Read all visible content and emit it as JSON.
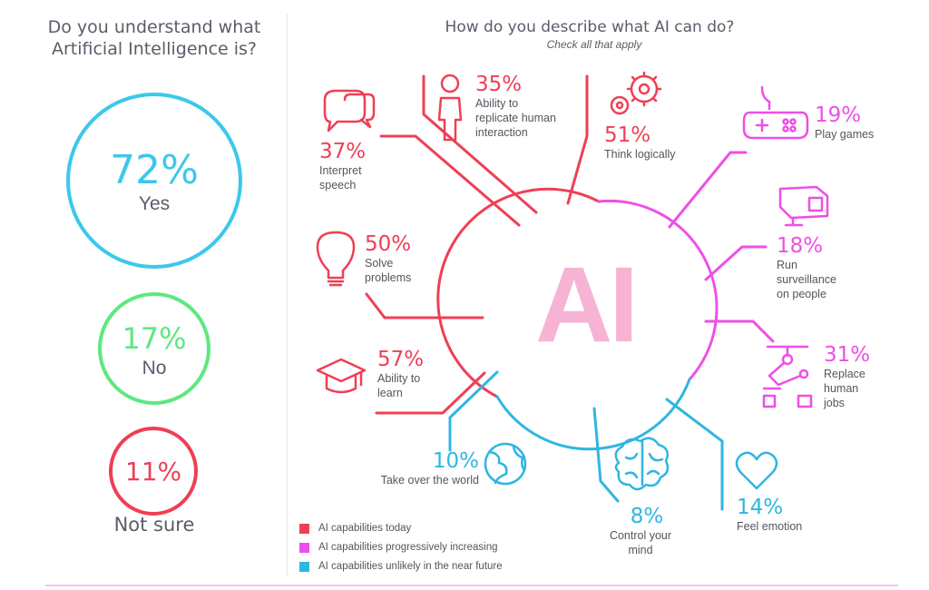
{
  "left_panel": {
    "question": [
      "Do you understand what",
      "Artificial Intelligence is?"
    ],
    "answers": [
      {
        "pct": "72%",
        "label": "Yes"
      },
      {
        "pct": "17%",
        "label": "No"
      },
      {
        "pct": "11%",
        "label": "Not sure"
      }
    ]
  },
  "right_panel": {
    "question": "How do you describe what AI can do?",
    "subtitle": "Check all that apply",
    "center": "AI",
    "items": {
      "interpret_speech": {
        "pct": "37%",
        "desc": [
          "Interpret",
          "speech"
        ]
      },
      "replicate": {
        "pct": "35%",
        "desc": [
          "Ability to",
          "replicate human",
          "interaction"
        ]
      },
      "think": {
        "pct": "51%",
        "desc": [
          "Think logically"
        ]
      },
      "games": {
        "pct": "19%",
        "desc": [
          "Play games"
        ]
      },
      "solve": {
        "pct": "50%",
        "desc": [
          "Solve",
          "problems"
        ]
      },
      "surveillance": {
        "pct": "18%",
        "desc": [
          "Run",
          "surveillance",
          "on people"
        ]
      },
      "learn": {
        "pct": "57%",
        "desc": [
          "Ability to",
          "learn"
        ]
      },
      "jobs": {
        "pct": "31%",
        "desc": [
          "Replace",
          "human",
          "jobs"
        ]
      },
      "world": {
        "pct": "10%",
        "desc": [
          "Take over the world"
        ]
      },
      "mind": {
        "pct": "8%",
        "desc": [
          "Control your",
          "mind"
        ]
      },
      "emotion": {
        "pct": "14%",
        "desc": [
          "Feel emotion"
        ]
      }
    }
  },
  "legend": [
    {
      "label": "AI capabilities today",
      "color": "#ef3f55"
    },
    {
      "label": "AI capabilities progressively increasing",
      "color": "#ee4fe6"
    },
    {
      "label": "AI capabilities unlikely in the near future",
      "color": "#2fb6e1"
    }
  ]
}
